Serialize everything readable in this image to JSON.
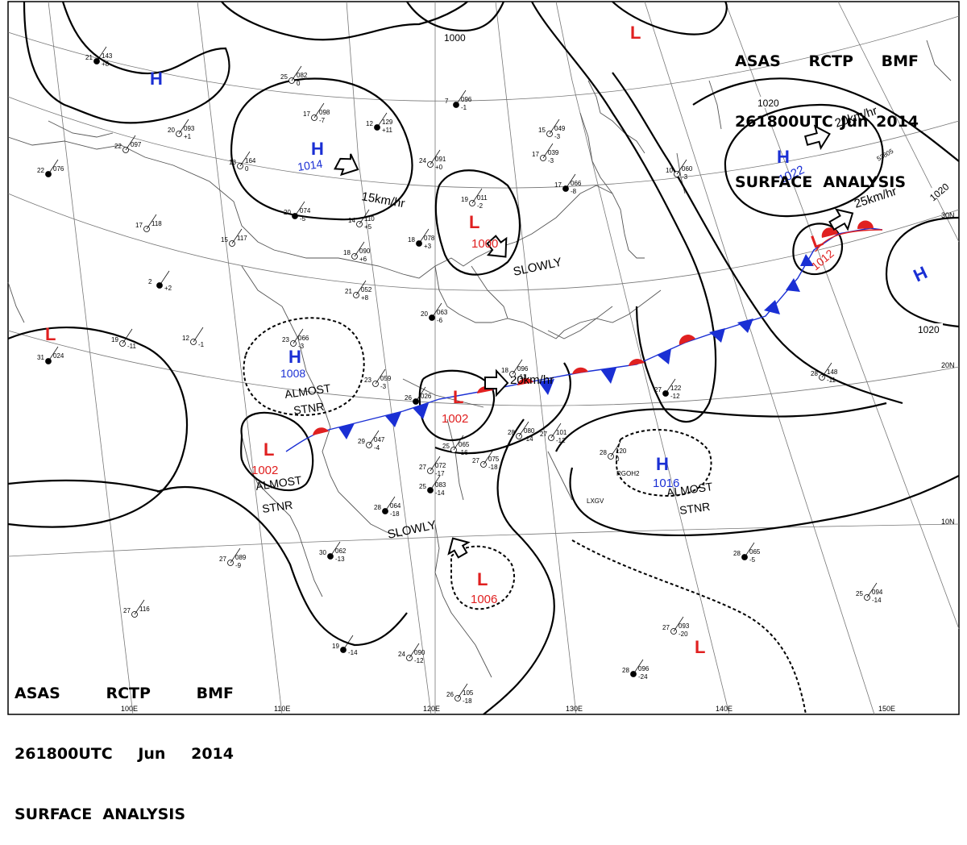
{
  "header": {
    "line1": [
      "ASAS",
      "RCTP",
      "BMF"
    ],
    "line2": [
      "261800UTC",
      "Jun",
      "2014"
    ],
    "line3": "SURFACE  ANALYSIS"
  },
  "longitude_labels": [
    "100E",
    "110E",
    "120E",
    "130E",
    "140E",
    "150E"
  ],
  "latitude_labels": [
    "30N",
    "20N",
    "10N"
  ],
  "pressure_systems": [
    {
      "type": "H",
      "value": "",
      "color": "#1a2fd4"
    },
    {
      "type": "H",
      "value": "1014",
      "color": "#1a2fd4"
    },
    {
      "type": "L",
      "value": "",
      "color": "#e02020"
    },
    {
      "type": "L",
      "value": "1000",
      "color": "#e02020"
    },
    {
      "type": "H",
      "value": "1022",
      "color": "#1a2fd4"
    },
    {
      "type": "L",
      "value": "1012",
      "color": "#e02020"
    },
    {
      "type": "H",
      "value": "",
      "color": "#1a2fd4"
    },
    {
      "type": "L",
      "value": "",
      "color": "#e02020"
    },
    {
      "type": "H",
      "value": "1008",
      "color": "#1a2fd4"
    },
    {
      "type": "L",
      "value": "1002",
      "color": "#e02020"
    },
    {
      "type": "L",
      "value": "1002",
      "color": "#e02020"
    },
    {
      "type": "H",
      "value": "1016",
      "color": "#1a2fd4"
    },
    {
      "type": "L",
      "value": "1006",
      "color": "#e02020"
    },
    {
      "type": "L",
      "value": "",
      "color": "#e02020"
    }
  ],
  "isobar_labels": [
    "1000",
    "1020",
    "1020",
    "1020"
  ],
  "motion_labels": [
    "15km/hr",
    "SLOWLY",
    "20km/hr",
    "25km/hr",
    "20km/hr",
    "SLOWLY"
  ],
  "stnr_labels": [
    {
      "line1": "ALMOST",
      "line2": "STNR"
    },
    {
      "line1": "ALMOST",
      "line2": "STNR"
    },
    {
      "line1": "ALMOST",
      "line2": "STNR"
    }
  ],
  "stations": [
    {
      "temp": "21",
      "press": "143",
      "tend": "+8"
    },
    {
      "temp": "20",
      "press": "093",
      "tend": "+1"
    },
    {
      "temp": "22",
      "press": "097",
      "tend": ""
    },
    {
      "temp": "22",
      "press": "076",
      "tend": ""
    },
    {
      "temp": "13",
      "press": "164",
      "tend": "0"
    },
    {
      "temp": "17",
      "press": "098",
      "tend": "-7"
    },
    {
      "temp": "12",
      "press": "129",
      "tend": "+11"
    },
    {
      "temp": "17",
      "press": "118",
      "tend": ""
    },
    {
      "temp": "15",
      "press": "117",
      "tend": ""
    },
    {
      "temp": "20",
      "press": "074",
      "tend": "-5"
    },
    {
      "temp": "14",
      "press": "110",
      "tend": "+5"
    },
    {
      "temp": "18",
      "press": "090",
      "tend": "+6"
    },
    {
      "temp": "18",
      "press": "078",
      "tend": "+3"
    },
    {
      "temp": "19",
      "press": "011",
      "tend": "-2"
    },
    {
      "temp": "24",
      "press": "091",
      "tend": "+0"
    },
    {
      "temp": "7",
      "press": "096",
      "tend": "-1"
    },
    {
      "temp": "15",
      "press": "049",
      "tend": "-3"
    },
    {
      "temp": "17",
      "press": "039",
      "tend": "-3"
    },
    {
      "temp": "17",
      "press": "066",
      "tend": "-8"
    },
    {
      "temp": "10",
      "press": "060",
      "tend": "-3"
    },
    {
      "temp": "21",
      "press": "052",
      "tend": "+8"
    },
    {
      "temp": "20",
      "press": "063",
      "tend": "-6"
    },
    {
      "temp": "23",
      "press": "066",
      "tend": "-3"
    },
    {
      "temp": "23",
      "press": "059",
      "tend": "-3"
    },
    {
      "temp": "26",
      "press": "026",
      "tend": ""
    },
    {
      "temp": "29",
      "press": "047",
      "tend": "-4"
    },
    {
      "temp": "27",
      "press": "072",
      "tend": "-17"
    },
    {
      "temp": "25",
      "press": "083",
      "tend": "-14"
    },
    {
      "temp": "25",
      "press": "065",
      "tend": "-16"
    },
    {
      "temp": "27",
      "press": "075",
      "tend": "-18"
    },
    {
      "temp": "28",
      "press": "064",
      "tend": "-18"
    },
    {
      "temp": "27",
      "press": "101",
      "tend": "-12"
    },
    {
      "temp": "28",
      "press": "080",
      "tend": "-14"
    },
    {
      "temp": "27",
      "press": "122",
      "tend": "-12"
    },
    {
      "temp": "28",
      "press": "148",
      "tend": "-11"
    },
    {
      "temp": "28",
      "press": "120",
      "tend": "0"
    },
    {
      "temp": "30",
      "press": "062",
      "tend": "-13"
    },
    {
      "temp": "27",
      "press": "089",
      "tend": "-9"
    },
    {
      "temp": "27",
      "press": "116",
      "tend": ""
    },
    {
      "temp": "28",
      "press": "065",
      "tend": "-5"
    },
    {
      "temp": "25",
      "press": "094",
      "tend": "-14"
    },
    {
      "temp": "27",
      "press": "093",
      "tend": "-20"
    },
    {
      "temp": "28",
      "press": "096",
      "tend": "-24"
    },
    {
      "temp": "24",
      "press": "090",
      "tend": "-12"
    },
    {
      "temp": "26",
      "press": "105",
      "tend": "-18"
    },
    {
      "temp": "31",
      "press": "024",
      "tend": ""
    },
    {
      "temp": "12",
      "press": "",
      "tend": "-1"
    },
    {
      "temp": "19",
      "press": "",
      "tend": "-11"
    },
    {
      "temp": "2",
      "press": "",
      "tend": "+2"
    },
    {
      "temp": "18",
      "press": "096",
      "tend": "-13"
    },
    {
      "temp": "25",
      "press": "082",
      "tend": "0"
    },
    {
      "temp": "19",
      "press": "",
      "tend": "-14"
    }
  ],
  "station_ids": [
    "LXGV",
    "RGOH2",
    "53805"
  ],
  "colors": {
    "warm_front": "#e02020",
    "cold_front": "#1a2fd4",
    "high": "#1a2fd4",
    "low": "#e02020",
    "isobar": "#000000",
    "grid": "#555555"
  }
}
